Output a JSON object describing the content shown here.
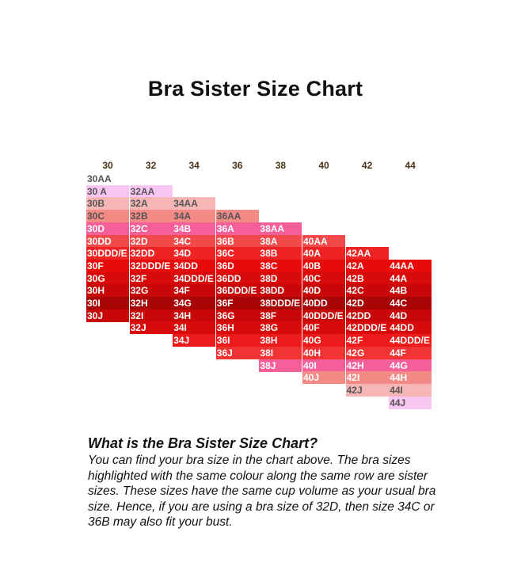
{
  "title": "Bra Sister Size Chart",
  "chart_data": {
    "type": "table",
    "title": "Bra Sister Size Chart",
    "columns": [
      "30",
      "32",
      "34",
      "36",
      "38",
      "40",
      "42",
      "44"
    ],
    "row_colors": [
      "#ffffff",
      "#f9c6f4",
      "#f6b6b6",
      "#f48a86",
      "#f45f9a",
      "#f24a4a",
      "#ef2323",
      "#e80b0b",
      "#d80a0a",
      "#c80808",
      "#a80606",
      "#c80808",
      "#d80a0a",
      "#ec1a1a",
      "#f03333",
      "#f45f9a",
      "#f48a86",
      "#f6b6b6",
      "#f9c6f4",
      "#ffffff"
    ],
    "text_colors": [
      "#555555",
      "#555555",
      "#555555",
      "#555555",
      "#ffffff",
      "#ffffff",
      "#ffffff",
      "#ffffff",
      "#ffffff",
      "#ffffff",
      "#ffffff",
      "#ffffff",
      "#ffffff",
      "#ffffff",
      "#ffffff",
      "#ffffff",
      "#ffffff",
      "#555555",
      "#555555",
      "#555555"
    ],
    "sizes": [
      [
        "30AA",
        "30 A",
        "30B",
        "30C",
        "30D",
        "30DD",
        "30DDD/E",
        "30F",
        "30G",
        "30H",
        "30I",
        "30J"
      ],
      [
        "32AA",
        "32A",
        "32B",
        "32C",
        "32D",
        "32DD",
        "32DDD/E",
        "32F",
        "32G",
        "32H",
        "32I",
        "32J"
      ],
      [
        "34AA",
        "34A",
        "34B",
        "34C",
        "34D",
        "34DD",
        "34DDD/E",
        "34F",
        "34G",
        "34H",
        "34I",
        "34J"
      ],
      [
        "36AA",
        "36A",
        "36B",
        "36C",
        "36D",
        "36DD",
        "36DDD/E",
        "36F",
        "36G",
        "36H",
        "36I",
        "36J"
      ],
      [
        "38AA",
        "38A",
        "38B",
        "38C",
        "38D",
        "38DD",
        "38DDD/E",
        "38F",
        "38G",
        "38H",
        "38I",
        "38J"
      ],
      [
        "40AA",
        "40A",
        "40B",
        "40C",
        "40D",
        "40DD",
        "40DDD/E",
        "40F",
        "40G",
        "40H",
        "40I",
        "40J"
      ],
      [
        "42AA",
        "42A",
        "42B",
        "42C",
        "42D",
        "42DD",
        "42DDD/E",
        "42F",
        "42G",
        "42H",
        "42I",
        "42J"
      ],
      [
        "44AA",
        "44A",
        "44B",
        "44C",
        "44D",
        "44DD",
        "44DDD/E",
        "44F",
        "44G",
        "44H",
        "44I",
        "44J"
      ]
    ]
  },
  "explanation": {
    "heading": "What is the Bra Sister Size Chart?",
    "body": "You can find your bra size in the chart above. The bra sizes highlighted with the same colour along the same row are sister sizes. These sizes have the same cup volume as your usual bra size. Hence, if you are using a bra size of 32D, then size 34C or 36B may also fit your bust."
  }
}
